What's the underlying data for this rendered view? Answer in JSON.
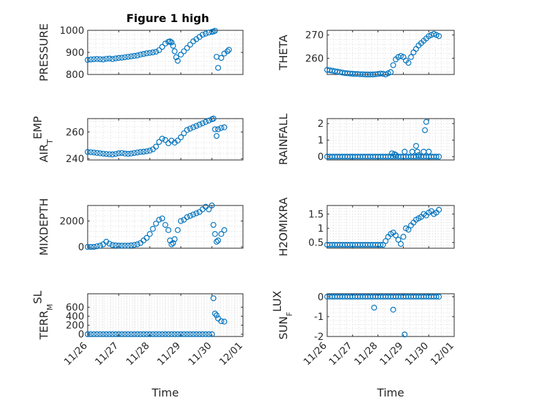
{
  "figure_title": "Figure 1 high",
  "chart_data": [
    {
      "type": "scatter",
      "title": "Figure 1 high",
      "ylabel": "PRESSURE",
      "xlabel": "",
      "xlim": [
        0,
        5
      ],
      "ylim": [
        800,
        1000
      ],
      "yticks": [
        800,
        900,
        1000
      ],
      "xticks": [
        0,
        1,
        2,
        3,
        4,
        5
      ],
      "xticklabels": [],
      "grid": true,
      "color": "#0072bd",
      "series": [
        {
          "x": [
            0,
            0.1,
            0.2,
            0.3,
            0.4,
            0.5,
            0.6,
            0.7,
            0.8,
            0.9,
            1,
            1.1,
            1.2,
            1.3,
            1.4,
            1.5,
            1.6,
            1.7,
            1.8,
            1.9,
            2,
            2.1,
            2.2,
            2.3,
            2.4,
            2.5,
            2.6,
            2.65,
            2.7,
            2.75,
            2.8,
            2.85,
            2.9,
            3,
            3.1,
            3.2,
            3.3,
            3.4,
            3.5,
            3.6,
            3.7,
            3.8,
            3.9,
            4,
            4.05,
            4.1,
            4.15,
            4.2,
            4.3,
            4.4,
            4.5,
            4.55
          ],
          "y": [
            866,
            868,
            869,
            870,
            869,
            868,
            871,
            872,
            870,
            873,
            875,
            876,
            878,
            880,
            882,
            884,
            886,
            890,
            893,
            896,
            898,
            900,
            903,
            910,
            925,
            940,
            948,
            950,
            945,
            930,
            905,
            878,
            862,
            890,
            905,
            920,
            935,
            950,
            960,
            970,
            980,
            985,
            990,
            993,
            995,
            998,
            880,
            830,
            875,
            895,
            905,
            912
          ]
        }
      ]
    },
    {
      "type": "scatter",
      "ylabel": "THETA",
      "xlabel": "",
      "xlim": [
        0,
        5
      ],
      "ylim": [
        253,
        272
      ],
      "yticks": [
        260,
        270
      ],
      "xticks": [
        0,
        1,
        2,
        3,
        4,
        5
      ],
      "xticklabels": [],
      "grid": true,
      "color": "#0072bd",
      "series": [
        {
          "x": [
            0,
            0.1,
            0.2,
            0.3,
            0.4,
            0.5,
            0.6,
            0.7,
            0.8,
            0.9,
            1,
            1.1,
            1.2,
            1.3,
            1.4,
            1.5,
            1.6,
            1.7,
            1.8,
            1.9,
            2,
            2.1,
            2.2,
            2.3,
            2.4,
            2.5,
            2.6,
            2.7,
            2.8,
            2.9,
            3,
            3.1,
            3.2,
            3.3,
            3.4,
            3.5,
            3.6,
            3.7,
            3.8,
            3.9,
            4,
            4.1,
            4.2,
            4.3,
            4.4
          ],
          "y": [
            255,
            254.8,
            254.6,
            254.4,
            254.2,
            254,
            253.8,
            253.6,
            253.5,
            253.4,
            253.3,
            253.2,
            253.2,
            253.1,
            253.1,
            253,
            253,
            253,
            253,
            253.1,
            253.2,
            253.4,
            253.3,
            253,
            253.5,
            254,
            257,
            259.5,
            260.5,
            261,
            260.5,
            259,
            258,
            260.5,
            262.5,
            264,
            265.5,
            266.5,
            267.5,
            268.5,
            269.5,
            270,
            270.5,
            270,
            269.5
          ]
        }
      ]
    },
    {
      "type": "scatter",
      "ylabel": "AIR_TEMP",
      "xlabel": "",
      "xlim": [
        0,
        5
      ],
      "ylim": [
        239,
        270
      ],
      "yticks": [
        240,
        260
      ],
      "xticks": [
        0,
        1,
        2,
        3,
        4,
        5
      ],
      "xticklabels": [],
      "grid": true,
      "color": "#0072bd",
      "series": [
        {
          "x": [
            0,
            0.1,
            0.2,
            0.3,
            0.4,
            0.5,
            0.6,
            0.7,
            0.8,
            0.9,
            1,
            1.1,
            1.2,
            1.3,
            1.4,
            1.5,
            1.6,
            1.7,
            1.8,
            1.9,
            2,
            2.1,
            2.2,
            2.3,
            2.4,
            2.5,
            2.6,
            2.7,
            2.8,
            2.9,
            3,
            3.1,
            3.2,
            3.3,
            3.4,
            3.5,
            3.6,
            3.7,
            3.8,
            3.9,
            4,
            4.05,
            4.1,
            4.15,
            4.2,
            4.3,
            4.4
          ],
          "y": [
            245,
            244.8,
            244.6,
            244.3,
            244,
            243.7,
            243.5,
            243.3,
            243.2,
            243.5,
            244,
            244.2,
            243.8,
            243.6,
            243.8,
            244.2,
            244.6,
            245,
            245.2,
            245.5,
            246,
            247,
            249,
            252.5,
            255,
            254,
            251.5,
            253.5,
            252,
            253.5,
            256,
            259,
            261.5,
            262.5,
            263.5,
            264.5,
            265.5,
            266.5,
            267.5,
            268.5,
            269.5,
            270,
            262,
            257,
            262,
            263,
            263.5
          ]
        }
      ]
    },
    {
      "type": "scatter",
      "ylabel": "RAINFALL",
      "xlabel": "",
      "xlim": [
        0,
        5
      ],
      "ylim": [
        -0.2,
        2.3
      ],
      "yticks": [
        0,
        1,
        2
      ],
      "xticks": [
        0,
        1,
        2,
        3,
        4,
        5
      ],
      "xticklabels": [],
      "grid": true,
      "color": "#0072bd",
      "series": [
        {
          "x": [
            0,
            0.1,
            0.2,
            0.3,
            0.4,
            0.5,
            0.6,
            0.7,
            0.8,
            0.9,
            1,
            1.1,
            1.2,
            1.3,
            1.4,
            1.5,
            1.6,
            1.7,
            1.8,
            1.9,
            2,
            2.1,
            2.2,
            2.3,
            2.4,
            2.5,
            2.6,
            2.7,
            2.8,
            2.9,
            3,
            3.1,
            3.2,
            3.3,
            3.4,
            3.5,
            3.6,
            3.7,
            3.8,
            3.9,
            4,
            4.1,
            4.2,
            4.3,
            4.4,
            2.55,
            2.65,
            2.7,
            3.05,
            3.35,
            3.5,
            3.55,
            3.6,
            3.8,
            3.85,
            3.9,
            4.0
          ],
          "y": [
            0,
            0,
            0,
            0,
            0,
            0,
            0,
            0,
            0,
            0,
            0,
            0,
            0,
            0,
            0,
            0,
            0,
            0,
            0,
            0,
            0,
            0,
            0,
            0,
            0,
            0,
            0,
            0,
            0,
            0,
            0,
            0,
            0,
            0,
            0,
            0,
            0,
            0,
            0,
            0,
            0,
            0,
            0,
            0,
            0,
            0.2,
            0.15,
            0.1,
            0.3,
            0.3,
            0.65,
            0.3,
            0.1,
            0.3,
            1.6,
            2.1,
            0.3
          ]
        }
      ]
    },
    {
      "type": "scatter",
      "ylabel": "MIXDEPTH",
      "xlabel": "",
      "xlim": [
        0,
        5
      ],
      "ylim": [
        -100,
        3200
      ],
      "yticks": [
        0,
        2000
      ],
      "xticks": [
        0,
        1,
        2,
        3,
        4,
        5
      ],
      "xticklabels": [],
      "grid": true,
      "color": "#0072bd",
      "series": [
        {
          "x": [
            0,
            0.1,
            0.2,
            0.3,
            0.4,
            0.5,
            0.6,
            0.7,
            0.8,
            0.9,
            1,
            1.1,
            1.2,
            1.3,
            1.4,
            1.5,
            1.6,
            1.7,
            1.8,
            1.9,
            2,
            2.1,
            2.2,
            2.3,
            2.4,
            2.5,
            2.6,
            2.65,
            2.7,
            2.75,
            2.8,
            2.9,
            3,
            3.1,
            3.2,
            3.3,
            3.4,
            3.5,
            3.6,
            3.7,
            3.8,
            3.9,
            4,
            4.05,
            4.1,
            4.15,
            4.2,
            4.3,
            4.4
          ],
          "y": [
            0,
            0,
            0,
            50,
            100,
            200,
            400,
            250,
            150,
            120,
            100,
            100,
            100,
            100,
            120,
            150,
            200,
            300,
            500,
            700,
            1000,
            1400,
            1800,
            2100,
            2200,
            1700,
            1300,
            500,
            200,
            300,
            600,
            1300,
            2000,
            2100,
            2300,
            2400,
            2500,
            2600,
            2700,
            2900,
            3100,
            2900,
            3200,
            1700,
            1000,
            400,
            500,
            1000,
            1300
          ]
        }
      ]
    },
    {
      "type": "scatter",
      "ylabel": "H2OMIXRA",
      "xlabel": "",
      "xlim": [
        0,
        5
      ],
      "ylim": [
        0.3,
        1.8
      ],
      "yticks": [
        0.5,
        1,
        1.5
      ],
      "xticks": [
        0,
        1,
        2,
        3,
        4,
        5
      ],
      "xticklabels": [],
      "grid": true,
      "color": "#0072bd",
      "series": [
        {
          "x": [
            0,
            0.1,
            0.2,
            0.3,
            0.4,
            0.5,
            0.6,
            0.7,
            0.8,
            0.9,
            1,
            1.1,
            1.2,
            1.3,
            1.4,
            1.5,
            1.6,
            1.7,
            1.8,
            1.9,
            2,
            2.1,
            2.2,
            2.3,
            2.4,
            2.5,
            2.6,
            2.7,
            2.8,
            2.9,
            3,
            3.1,
            3.2,
            3.3,
            3.4,
            3.5,
            3.6,
            3.7,
            3.8,
            3.9,
            4,
            4.1,
            4.2,
            4.3,
            4.4
          ],
          "y": [
            0.42,
            0.42,
            0.42,
            0.42,
            0.42,
            0.42,
            0.42,
            0.42,
            0.42,
            0.42,
            0.42,
            0.42,
            0.42,
            0.42,
            0.42,
            0.42,
            0.42,
            0.42,
            0.42,
            0.42,
            0.42,
            0.42,
            0.42,
            0.55,
            0.7,
            0.8,
            0.85,
            0.75,
            0.6,
            0.45,
            0.7,
            1.0,
            0.95,
            1.1,
            1.2,
            1.3,
            1.35,
            1.4,
            1.5,
            1.45,
            1.55,
            1.6,
            1.5,
            1.55,
            1.65
          ]
        }
      ]
    },
    {
      "type": "scatter",
      "ylabel": "TERR_MSL",
      "xlabel": "Time",
      "xlim": [
        0,
        5
      ],
      "ylim": [
        -50,
        900
      ],
      "yticks": [
        0,
        200,
        400,
        600
      ],
      "xticks": [
        0,
        1,
        2,
        3,
        4,
        5
      ],
      "xticklabels": [
        "11/26",
        "11/27",
        "11/28",
        "11/29",
        "11/30",
        "12/01"
      ],
      "grid": true,
      "color": "#0072bd",
      "series": [
        {
          "x": [
            0,
            0.1,
            0.2,
            0.3,
            0.4,
            0.5,
            0.6,
            0.7,
            0.8,
            0.9,
            1,
            1.1,
            1.2,
            1.3,
            1.4,
            1.5,
            1.6,
            1.7,
            1.8,
            1.9,
            2,
            2.1,
            2.2,
            2.3,
            2.4,
            2.5,
            2.6,
            2.7,
            2.8,
            2.9,
            3,
            3.1,
            3.2,
            3.3,
            3.4,
            3.5,
            3.6,
            3.7,
            3.8,
            3.9,
            4,
            4.05,
            4.1,
            4.15,
            4.2,
            4.3,
            4.4
          ],
          "y": [
            0,
            0,
            0,
            0,
            0,
            0,
            0,
            0,
            0,
            0,
            0,
            0,
            0,
            0,
            0,
            0,
            0,
            0,
            0,
            0,
            0,
            0,
            0,
            0,
            0,
            0,
            0,
            0,
            0,
            0,
            0,
            0,
            0,
            0,
            0,
            0,
            0,
            0,
            0,
            0,
            0,
            800,
            460,
            420,
            350,
            290,
            280
          ]
        }
      ]
    },
    {
      "type": "scatter",
      "ylabel": "SUN_FLUX",
      "xlabel": "Time",
      "xlim": [
        0,
        5
      ],
      "ylim": [
        -2,
        0.15
      ],
      "yticks": [
        -2,
        -1,
        0
      ],
      "xticks": [
        0,
        1,
        2,
        3,
        4,
        5
      ],
      "xticklabels": [
        "11/26",
        "11/27",
        "11/28",
        "11/29",
        "11/30",
        "12/01"
      ],
      "grid": true,
      "color": "#0072bd",
      "series": [
        {
          "x": [
            0,
            0.1,
            0.2,
            0.3,
            0.4,
            0.5,
            0.6,
            0.7,
            0.8,
            0.9,
            1,
            1.1,
            1.2,
            1.3,
            1.4,
            1.5,
            1.6,
            1.7,
            1.8,
            1.9,
            2,
            2.1,
            2.2,
            2.3,
            2.4,
            2.5,
            2.6,
            2.7,
            2.8,
            2.9,
            3,
            3.1,
            3.2,
            3.3,
            3.4,
            3.5,
            3.6,
            3.7,
            3.8,
            3.9,
            4,
            4.1,
            4.2,
            4.3,
            4.4,
            1.85,
            2.6,
            3.05
          ],
          "y": [
            0,
            0,
            0,
            0,
            0,
            0,
            0,
            0,
            0,
            0,
            0,
            0,
            0,
            0,
            0,
            0,
            0,
            0,
            0,
            0,
            0,
            0,
            0,
            0,
            0,
            0,
            0,
            0,
            0,
            0,
            0,
            0,
            0,
            0,
            0,
            0,
            0,
            0,
            0,
            0,
            0,
            0,
            0,
            0,
            0,
            -0.55,
            -0.65,
            -1.9
          ]
        }
      ]
    }
  ]
}
